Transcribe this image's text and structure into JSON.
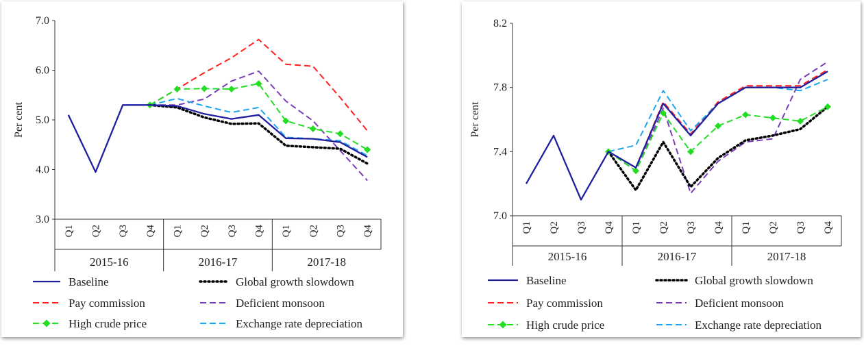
{
  "chart_data": [
    {
      "type": "line",
      "ylabel": "Per cent",
      "ylim": [
        3.0,
        7.0
      ],
      "yticks": [
        "3.0",
        "4.0",
        "5.0",
        "6.0",
        "7.0"
      ],
      "x": [
        "Q1",
        "Q2",
        "Q3",
        "Q4",
        "Q1",
        "Q2",
        "Q3",
        "Q4",
        "Q1",
        "Q2",
        "Q3",
        "Q4"
      ],
      "years": [
        "2015-16",
        "2016-17",
        "2017-18"
      ],
      "series": [
        {
          "name": "Baseline",
          "color": "#1f1f9e",
          "style": "solid",
          "values": [
            5.1,
            3.95,
            5.3,
            5.3,
            5.28,
            5.12,
            5.02,
            5.1,
            4.63,
            4.62,
            4.55,
            4.25
          ]
        },
        {
          "name": "Pay commission",
          "color": "#ff2020",
          "style": "dash",
          "values": [
            null,
            null,
            null,
            5.3,
            5.62,
            5.95,
            6.25,
            6.62,
            6.12,
            6.08,
            5.45,
            4.78
          ]
        },
        {
          "name": "High crude price",
          "color": "#22dd22",
          "style": "dash-diamond",
          "values": [
            null,
            null,
            null,
            5.3,
            5.62,
            5.63,
            5.62,
            5.73,
            4.98,
            4.82,
            4.72,
            4.4
          ]
        },
        {
          "name": "Global growth slowdown",
          "color": "#000000",
          "style": "dot",
          "values": [
            null,
            null,
            null,
            5.3,
            5.25,
            5.05,
            4.92,
            4.93,
            4.48,
            4.45,
            4.42,
            4.12
          ]
        },
        {
          "name": "Deficient monsoon",
          "color": "#7a3db8",
          "style": "dash",
          "values": [
            null,
            null,
            null,
            5.3,
            5.3,
            5.42,
            5.78,
            5.98,
            5.38,
            4.98,
            4.38,
            3.78
          ]
        },
        {
          "name": "Exchange rate depreciation",
          "color": "#1fa4f0",
          "style": "dash",
          "values": [
            null,
            null,
            null,
            5.3,
            5.43,
            5.28,
            5.15,
            5.25,
            4.65,
            4.62,
            4.58,
            4.28
          ]
        }
      ]
    },
    {
      "type": "line",
      "ylabel": "Per cent",
      "ylim": [
        7.0,
        8.2
      ],
      "yticks": [
        "7.0",
        "7.4",
        "7.8",
        "8.2"
      ],
      "x": [
        "Q1",
        "Q2",
        "Q3",
        "Q4",
        "Q1",
        "Q2",
        "Q3",
        "Q4",
        "Q1",
        "Q2",
        "Q3",
        "Q4"
      ],
      "years": [
        "2015-16",
        "2016-17",
        "2017-18"
      ],
      "series": [
        {
          "name": "Baseline",
          "color": "#1f1f9e",
          "style": "solid",
          "values": [
            7.2,
            7.5,
            7.1,
            7.4,
            7.3,
            7.7,
            7.5,
            7.7,
            7.8,
            7.8,
            7.8,
            7.9
          ]
        },
        {
          "name": "Pay commission",
          "color": "#ff2020",
          "style": "dash",
          "values": [
            null,
            null,
            null,
            7.4,
            7.3,
            7.71,
            7.51,
            7.71,
            7.81,
            7.81,
            7.81,
            7.91
          ]
        },
        {
          "name": "High crude price",
          "color": "#22dd22",
          "style": "dash-diamond",
          "values": [
            null,
            null,
            null,
            7.4,
            7.28,
            7.64,
            7.4,
            7.56,
            7.63,
            7.61,
            7.59,
            7.68
          ]
        },
        {
          "name": "Global growth slowdown",
          "color": "#000000",
          "style": "dot",
          "values": [
            null,
            null,
            null,
            7.4,
            7.16,
            7.46,
            7.18,
            7.36,
            7.47,
            7.5,
            7.54,
            7.68
          ]
        },
        {
          "name": "Deficient monsoon",
          "color": "#7a3db8",
          "style": "dash",
          "values": [
            null,
            null,
            null,
            7.4,
            7.28,
            7.67,
            7.14,
            7.34,
            7.46,
            7.48,
            7.85,
            7.96
          ]
        },
        {
          "name": "Exchange rate depreciation",
          "color": "#1fa4f0",
          "style": "dash",
          "values": [
            null,
            null,
            null,
            7.4,
            7.44,
            7.78,
            7.53,
            7.7,
            7.8,
            7.8,
            7.78,
            7.85
          ]
        }
      ]
    }
  ]
}
